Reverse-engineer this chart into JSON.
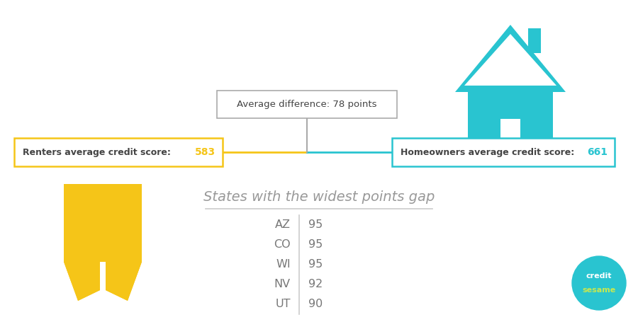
{
  "bg_color": "#ffffff",
  "renter_label": "Renters average credit score: ",
  "renter_score": "583",
  "homeowner_label": "Homeowners average credit score: ",
  "homeowner_score": "661",
  "avg_diff_text": "Average difference: 78 points",
  "section_title": "States with the widest points gap",
  "states": [
    "AZ",
    "CO",
    "WI",
    "NV",
    "UT"
  ],
  "gaps": [
    "95",
    "95",
    "95",
    "92",
    "90"
  ],
  "renter_color": "#F5C518",
  "homeowner_color": "#29C4D0",
  "label_text_color": "#444444",
  "title_color": "#999999",
  "table_text_color": "#777777",
  "logo_bg": "#29C4D0",
  "logo_text1": "credit",
  "logo_text2": "sesame",
  "logo_text2_color": "#c8e84e",
  "win_color": "#ffffff",
  "door_color": "#ffffff"
}
